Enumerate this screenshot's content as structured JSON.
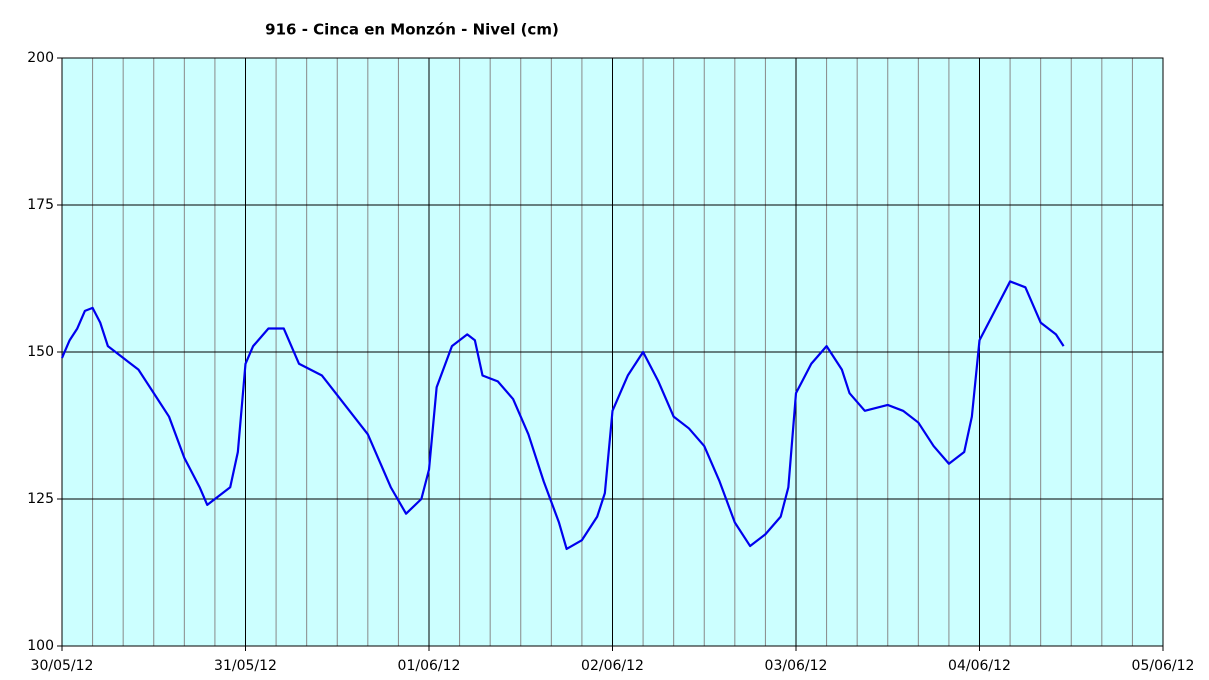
{
  "chart_data": {
    "type": "line",
    "title": "916 - Cinca en Monzón - Nivel (cm)",
    "x": [
      0,
      1,
      2,
      3,
      4,
      5,
      6,
      8,
      10,
      12,
      14,
      16,
      18,
      19,
      20,
      22,
      23,
      24,
      25,
      27,
      29,
      31,
      34,
      37,
      40,
      43,
      45,
      47,
      48,
      49,
      51,
      53,
      54,
      55,
      57,
      59,
      61,
      63,
      65,
      66,
      68,
      70,
      71,
      72,
      74,
      76,
      78,
      80,
      82,
      84,
      86,
      88,
      90,
      92,
      94,
      95,
      96,
      98,
      100,
      102,
      103,
      105,
      108,
      110,
      112,
      114,
      116,
      118,
      119,
      120,
      122,
      124,
      126,
      128,
      130,
      131
    ],
    "series": [
      {
        "color": "#0000ee",
        "values": [
          149,
          152,
          154,
          157,
          157.5,
          155,
          151,
          149,
          147,
          143,
          139,
          132,
          127,
          124,
          125,
          127,
          133,
          148,
          151,
          154,
          154,
          148,
          146,
          141,
          136,
          127,
          122.5,
          125,
          130,
          144,
          151,
          153,
          152,
          146,
          145,
          142,
          136,
          128,
          121,
          116.5,
          118,
          122,
          126,
          140,
          146,
          150,
          145,
          139,
          137,
          134,
          128,
          121,
          117,
          119,
          122,
          127,
          143,
          148,
          151,
          147,
          143,
          140,
          141,
          140,
          138,
          134,
          131,
          133,
          139,
          152,
          157,
          162,
          161,
          155,
          153,
          151
        ]
      }
    ],
    "xlim": [
      0,
      144
    ],
    "xticks": [
      {
        "value": 0,
        "label": "30/05/12"
      },
      {
        "value": 24,
        "label": "31/05/12"
      },
      {
        "value": 48,
        "label": "01/06/12"
      },
      {
        "value": 72,
        "label": "02/06/12"
      },
      {
        "value": 96,
        "label": "03/06/12"
      },
      {
        "value": 120,
        "label": "04/06/12"
      },
      {
        "value": 144,
        "label": "05/06/12"
      }
    ],
    "xminorticks": [
      4,
      8,
      12,
      16,
      20,
      28,
      32,
      36,
      40,
      44,
      52,
      56,
      60,
      64,
      68,
      76,
      80,
      84,
      88,
      92,
      100,
      104,
      108,
      112,
      116,
      124,
      128,
      132,
      136,
      140
    ],
    "ylim": [
      100,
      200
    ],
    "yticks": [
      100,
      125,
      150,
      175,
      200
    ],
    "grid": true,
    "plot_background": "#ccffff"
  }
}
